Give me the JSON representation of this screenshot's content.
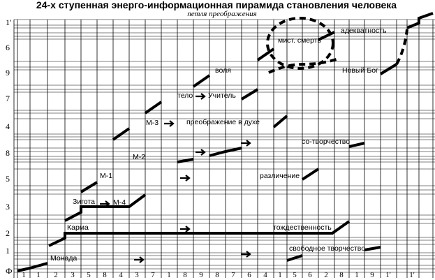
{
  "title": "24-х ступенная энерго-информационная пирамида становления человека",
  "subtitle": "петля преображения",
  "row_labels": [
    "Ф",
    "1",
    "2",
    "3",
    "5",
    "8",
    "4",
    "7",
    "9",
    "6",
    "1'"
  ],
  "column_labels": [
    "1",
    "1",
    "2",
    "3",
    "5",
    "8",
    "4",
    "3",
    "7",
    "1",
    "8",
    "9",
    "8",
    "7",
    "6",
    "4",
    "1",
    "5",
    "6",
    "2",
    "8",
    "1",
    "9",
    "1'",
    "1'"
  ],
  "labels": {
    "monada": "Монада",
    "karma": "Карма",
    "zigota": "Зигота",
    "m4": "М-4",
    "m1": "М-1",
    "m2": "М-2",
    "m3": "М-3",
    "telo": "тело",
    "uchitel": "Учитель",
    "volya": "воля",
    "preobrazhenie": "преображение в духе",
    "razlichenie": "различение",
    "tozhdestvennost": "тождественность",
    "svobodnoe": "свободное творчество",
    "sotvorchestvo": "со-творчество",
    "mist_smert": "мист. смерть",
    "adekvatnost": "адекватность",
    "novyi_bog": "Новый Бог"
  }
}
